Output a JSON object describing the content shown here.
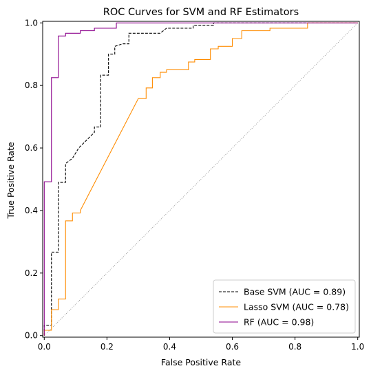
{
  "chart_data": {
    "type": "line",
    "title": "ROC Curves for SVM and RF Estimators",
    "xlabel": "False Positive Rate",
    "ylabel": "True Positive Rate",
    "xlim": [
      -0.005,
      1.005
    ],
    "ylim": [
      -0.005,
      1.005
    ],
    "xticks": [
      0.0,
      0.2,
      0.4,
      0.6,
      0.8,
      1.0
    ],
    "yticks": [
      0.0,
      0.2,
      0.4,
      0.6,
      0.8,
      1.0
    ],
    "xtick_labels": [
      "0.0",
      "0.2",
      "0.4",
      "0.6",
      "0.8",
      "1.0"
    ],
    "ytick_labels": [
      "0.0",
      "0.2",
      "0.4",
      "0.6",
      "0.8",
      "1.0"
    ],
    "grid": false,
    "legend_position": "lower right",
    "diagonal": {
      "points": [
        [
          0,
          0
        ],
        [
          1,
          1
        ]
      ],
      "color": "#808080",
      "style": "dotted"
    },
    "series": [
      {
        "name": "Base SVM (AUC = 0.89)",
        "color": "#000000",
        "style": "dashed",
        "points": [
          [
            0,
            0
          ],
          [
            0,
            0.033
          ],
          [
            0.023,
            0.033
          ],
          [
            0.023,
            0.267
          ],
          [
            0.045,
            0.267
          ],
          [
            0.045,
            0.49
          ],
          [
            0.068,
            0.49
          ],
          [
            0.068,
            0.55
          ],
          [
            0.09,
            0.567
          ],
          [
            0.11,
            0.6
          ],
          [
            0.135,
            0.625
          ],
          [
            0.16,
            0.65
          ],
          [
            0.16,
            0.667
          ],
          [
            0.18,
            0.667
          ],
          [
            0.18,
            0.833
          ],
          [
            0.205,
            0.833
          ],
          [
            0.205,
            0.9
          ],
          [
            0.225,
            0.9
          ],
          [
            0.225,
            0.925
          ],
          [
            0.25,
            0.933
          ],
          [
            0.27,
            0.933
          ],
          [
            0.27,
            0.967
          ],
          [
            0.37,
            0.967
          ],
          [
            0.39,
            0.983
          ],
          [
            0.475,
            0.983
          ],
          [
            0.475,
            0.992
          ],
          [
            0.54,
            0.992
          ],
          [
            0.54,
            1.0
          ],
          [
            1.0,
            1.0
          ]
        ]
      },
      {
        "name": "Lasso SVM (AUC = 0.78)",
        "color": "#ff8c00",
        "style": "solid",
        "points": [
          [
            0,
            0
          ],
          [
            0,
            0.017
          ],
          [
            0.023,
            0.017
          ],
          [
            0.023,
            0.083
          ],
          [
            0.045,
            0.083
          ],
          [
            0.045,
            0.117
          ],
          [
            0.068,
            0.117
          ],
          [
            0.068,
            0.367
          ],
          [
            0.09,
            0.367
          ],
          [
            0.09,
            0.392
          ],
          [
            0.115,
            0.392
          ],
          [
            0.115,
            0.4
          ],
          [
            0.3,
            0.758
          ],
          [
            0.325,
            0.758
          ],
          [
            0.325,
            0.792
          ],
          [
            0.345,
            0.792
          ],
          [
            0.345,
            0.825
          ],
          [
            0.37,
            0.825
          ],
          [
            0.37,
            0.842
          ],
          [
            0.39,
            0.842
          ],
          [
            0.39,
            0.85
          ],
          [
            0.46,
            0.85
          ],
          [
            0.46,
            0.875
          ],
          [
            0.48,
            0.875
          ],
          [
            0.48,
            0.883
          ],
          [
            0.53,
            0.883
          ],
          [
            0.53,
            0.917
          ],
          [
            0.555,
            0.917
          ],
          [
            0.555,
            0.925
          ],
          [
            0.6,
            0.925
          ],
          [
            0.6,
            0.95
          ],
          [
            0.63,
            0.95
          ],
          [
            0.63,
            0.975
          ],
          [
            0.72,
            0.975
          ],
          [
            0.72,
            0.983
          ],
          [
            0.84,
            0.983
          ],
          [
            0.84,
            1.0
          ],
          [
            1.0,
            1.0
          ]
        ]
      },
      {
        "name": "RF (AUC = 0.98)",
        "color": "#8b008b",
        "style": "solid",
        "points": [
          [
            0,
            0
          ],
          [
            0,
            0.492
          ],
          [
            0.023,
            0.492
          ],
          [
            0.023,
            0.825
          ],
          [
            0.045,
            0.825
          ],
          [
            0.045,
            0.958
          ],
          [
            0.068,
            0.958
          ],
          [
            0.068,
            0.967
          ],
          [
            0.115,
            0.967
          ],
          [
            0.115,
            0.975
          ],
          [
            0.16,
            0.975
          ],
          [
            0.16,
            0.983
          ],
          [
            0.23,
            0.983
          ],
          [
            0.23,
            1.0
          ],
          [
            1.0,
            1.0
          ]
        ]
      }
    ]
  }
}
